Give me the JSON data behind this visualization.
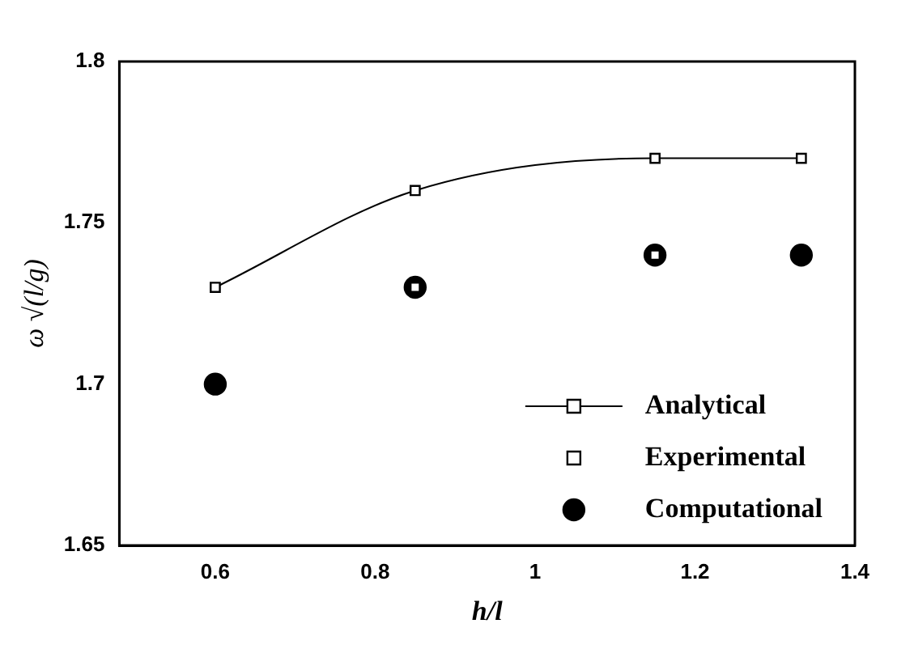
{
  "chart_data": {
    "type": "scatter",
    "xlabel": "h/l",
    "ylabel": "ω √(l/g)",
    "x": [
      0.6,
      0.85,
      1.15,
      1.333
    ],
    "series": [
      {
        "name": "Analytical",
        "type": "line",
        "color": "#000000",
        "marker": "square",
        "values": [
          1.73,
          1.76,
          1.77,
          1.77
        ]
      },
      {
        "name": "Experimental",
        "color": "#000000",
        "marker": "square",
        "values": [
          null,
          1.73,
          1.74,
          null
        ]
      },
      {
        "name": "Computational",
        "color": "#000000",
        "marker": "circle",
        "values": [
          1.7,
          1.73,
          1.74,
          1.74
        ]
      }
    ],
    "xlim": [
      0.48,
      1.4
    ],
    "xticks": [
      0.6,
      0.8,
      1,
      1.2,
      1.4
    ],
    "ylim": [
      1.65,
      1.8
    ],
    "yticks": [
      1.65,
      1.7,
      1.75,
      1.8
    ],
    "grid": false,
    "legend": "bottom right"
  }
}
